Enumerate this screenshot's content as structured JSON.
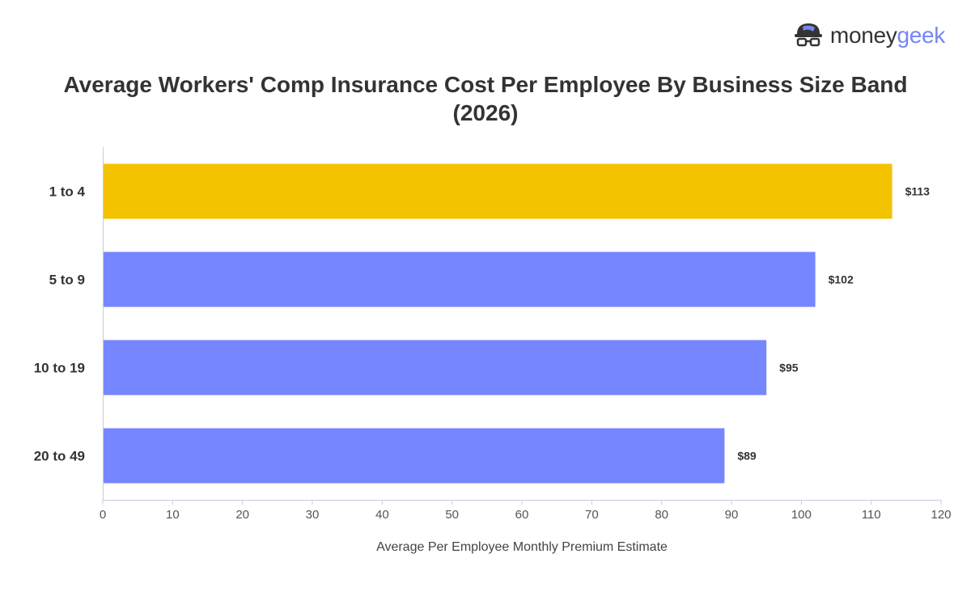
{
  "brand": {
    "name_part1": "money",
    "name_part2": "geek",
    "logo_icon": "geek-mascot-icon",
    "colors": {
      "primary": "#333333",
      "accent": "#7586f5"
    }
  },
  "chart_data": {
    "type": "bar",
    "orientation": "horizontal",
    "title": "Average Workers' Comp Insurance Cost Per Employee By Business Size Band (2026)",
    "xlabel": "Average Per Employee Monthly Premium Estimate",
    "ylabel": "",
    "categories": [
      "1 to 4",
      "5 to 9",
      "10 to 19",
      "20 to 49"
    ],
    "values": [
      113,
      102,
      95,
      89
    ],
    "data_labels": [
      "$113",
      "$102",
      "$95",
      "$89"
    ],
    "xlim": [
      0,
      120
    ],
    "xticks": [
      0,
      10,
      20,
      30,
      40,
      50,
      60,
      70,
      80,
      90,
      100,
      110,
      120
    ],
    "highlight_index": 0,
    "colors": {
      "highlight": "#f4c300",
      "default": "#7586ff"
    },
    "grid": false,
    "legend": "none"
  }
}
